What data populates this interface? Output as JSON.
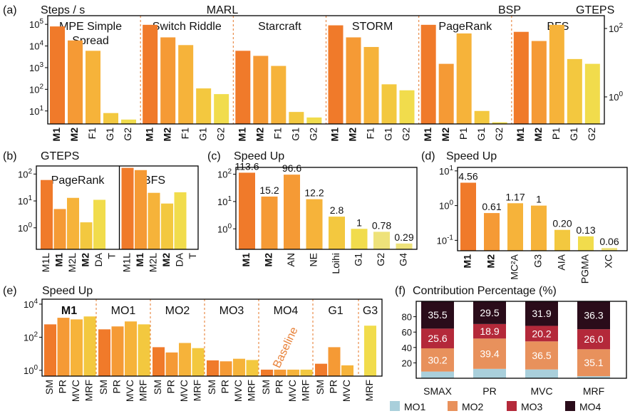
{
  "colors": {
    "M1": "#f07a2a",
    "M2": "#f59a35",
    "M3": "#f6b33a",
    "M4": "#f3c83f",
    "M5": "#f1dc4c",
    "M6": "#eee27a",
    "MO1": "#a9cfdb",
    "MO2": "#e8915c",
    "MO3": "#b4293a",
    "MO4": "#2a0c1a"
  },
  "chart_data": [
    {
      "id": "a",
      "panel_label": "(a)",
      "type": "bar",
      "yscale": "log",
      "ylabel_left": "Steps / s",
      "ylabel_right": "GTEPS",
      "category_headers": [
        "MARL",
        "BSP"
      ],
      "yticks_left": [
        "10^5",
        "10^4",
        "10^3",
        "10^2",
        "10^1"
      ],
      "yticks_right": [
        "10^2",
        "10^0"
      ],
      "groups": [
        {
          "name": "MPE Simple Spread",
          "name_line1": "MPE Simple",
          "name_line2": "Spread",
          "categories": [
            "M1",
            "M2",
            "F1",
            "G1",
            "G2"
          ],
          "values": [
            80000,
            18000,
            6000,
            8,
            4
          ]
        },
        {
          "name": "Switch Riddle",
          "categories": [
            "M1",
            "M2",
            "F1",
            "G1",
            "G2"
          ],
          "values": [
            95000,
            25000,
            11000,
            110,
            60
          ]
        },
        {
          "name": "Starcraft",
          "categories": [
            "M1",
            "M2",
            "F1",
            "G1",
            "G2"
          ],
          "values": [
            6000,
            3500,
            1200,
            9,
            5
          ]
        },
        {
          "name": "STORM",
          "categories": [
            "M1",
            "M2",
            "F1",
            "G1",
            "G2"
          ],
          "values": [
            90000,
            25000,
            9000,
            170,
            90
          ]
        },
        {
          "name": "PageRank",
          "categories": [
            "M1",
            "M2",
            "P1",
            "G1",
            "G2"
          ],
          "values": [
            95000,
            1500,
            38000,
            10,
            3
          ]
        },
        {
          "name": "BFS",
          "categories": [
            "M1",
            "M2",
            "P1",
            "G1",
            "G2"
          ],
          "values": [
            45000,
            17000,
            95000,
            2500,
            1500
          ]
        }
      ]
    },
    {
      "id": "b",
      "panel_label": "(b)",
      "type": "bar",
      "yscale": "log",
      "title": "GTEPS",
      "yticks": [
        "10^2",
        "10^1",
        "10^0"
      ],
      "groups": [
        {
          "name": "PageRank",
          "categories": [
            "M1L",
            "M1",
            "M2L",
            "M2",
            "DA",
            "T"
          ],
          "values": [
            60,
            5,
            13,
            1.6,
            11,
            0.15
          ]
        },
        {
          "name": "BFS",
          "categories": [
            "M1L",
            "M1",
            "M2L",
            "M2",
            "DA",
            "T"
          ],
          "values": [
            170,
            140,
            20,
            8,
            21,
            0.15
          ]
        }
      ]
    },
    {
      "id": "c",
      "panel_label": "(c)",
      "type": "bar",
      "yscale": "log",
      "title": "Speed Up",
      "yticks": [
        "10^2",
        "10^1",
        "10^0"
      ],
      "categories": [
        "M1",
        "M2",
        "AN",
        "NE",
        "Loihi",
        "G1",
        "G2",
        "G4"
      ],
      "values": [
        113.6,
        15.2,
        96.6,
        12.2,
        2.8,
        1,
        0.78,
        0.29
      ],
      "data_labels": [
        "113.6",
        "15.2",
        "96.6",
        "12.2",
        "2.8",
        "1",
        "0.78",
        "0.29"
      ]
    },
    {
      "id": "d",
      "panel_label": "(d)",
      "type": "bar",
      "yscale": "log",
      "title": "Speed Up",
      "yticks": [
        "10^1",
        "10^0",
        "10^-1"
      ],
      "categories": [
        "M1",
        "M2",
        "MC²A",
        "G3",
        "AIA",
        "PGMA",
        "XC"
      ],
      "values": [
        4.56,
        0.61,
        1.17,
        1,
        0.2,
        0.13,
        0.06
      ],
      "data_labels": [
        "4.56",
        "0.61",
        "1.17",
        "1",
        "0.20",
        "0.13",
        "0.06"
      ]
    },
    {
      "id": "e",
      "panel_label": "(e)",
      "type": "bar",
      "yscale": "log",
      "title": "Speed Up",
      "yticks": [
        "10^4",
        "10^2",
        "10^0"
      ],
      "annotation": "Baseline",
      "groups": [
        {
          "name": "M1",
          "categories": [
            "SM",
            "PR",
            "MVC",
            "MRF"
          ],
          "values": [
            600,
            1500,
            1200,
            1800
          ]
        },
        {
          "name": "MO1",
          "categories": [
            "SM",
            "PR",
            "MVC",
            "MRF"
          ],
          "values": [
            300,
            450,
            900,
            600
          ]
        },
        {
          "name": "MO2",
          "categories": [
            "SM",
            "PR",
            "MVC",
            "MRF"
          ],
          "values": [
            25,
            12,
            45,
            22
          ]
        },
        {
          "name": "MO3",
          "categories": [
            "SM",
            "PR",
            "MVC",
            "MRF"
          ],
          "values": [
            4,
            3.5,
            5,
            4.2
          ]
        },
        {
          "name": "MO4",
          "categories": [
            "SM",
            "PR",
            "MVC",
            "MRF"
          ],
          "values": [
            1.1,
            1.1,
            1.1,
            1.1
          ]
        },
        {
          "name": "G1",
          "categories": [
            "SM",
            "PR",
            "MVC"
          ],
          "values": [
            2.5,
            25,
            2
          ]
        },
        {
          "name": "G3",
          "categories": [
            "MRF"
          ],
          "values": [
            500
          ]
        }
      ]
    },
    {
      "id": "f",
      "panel_label": "(f)",
      "type": "bar",
      "stacked": true,
      "title": "Contribution Percentage (%)",
      "yticks": [
        20,
        40,
        60,
        80
      ],
      "ylim": [
        0,
        100
      ],
      "categories": [
        "SMAX",
        "PR",
        "MVC",
        "MRF"
      ],
      "series": [
        {
          "name": "MO1",
          "values": [
            8.7,
            12.2,
            11.4,
            2.6
          ],
          "labels": [
            "",
            "",
            "",
            ""
          ]
        },
        {
          "name": "MO2",
          "values": [
            30.2,
            39.4,
            36.5,
            35.1
          ],
          "labels": [
            "30.2",
            "39.4",
            "36.5",
            "35.1"
          ]
        },
        {
          "name": "MO3",
          "values": [
            25.6,
            18.9,
            20.2,
            26.0
          ],
          "labels": [
            "25.6",
            "18.9",
            "20.2",
            "26.0"
          ]
        },
        {
          "name": "MO4",
          "values": [
            35.5,
            29.5,
            31.9,
            36.3
          ],
          "labels": [
            "35.5",
            "29.5",
            "31.9",
            "36.3"
          ]
        }
      ],
      "legend": [
        "MO1",
        "MO2",
        "MO3",
        "MO4"
      ],
      "legend_position": "bottom"
    }
  ]
}
